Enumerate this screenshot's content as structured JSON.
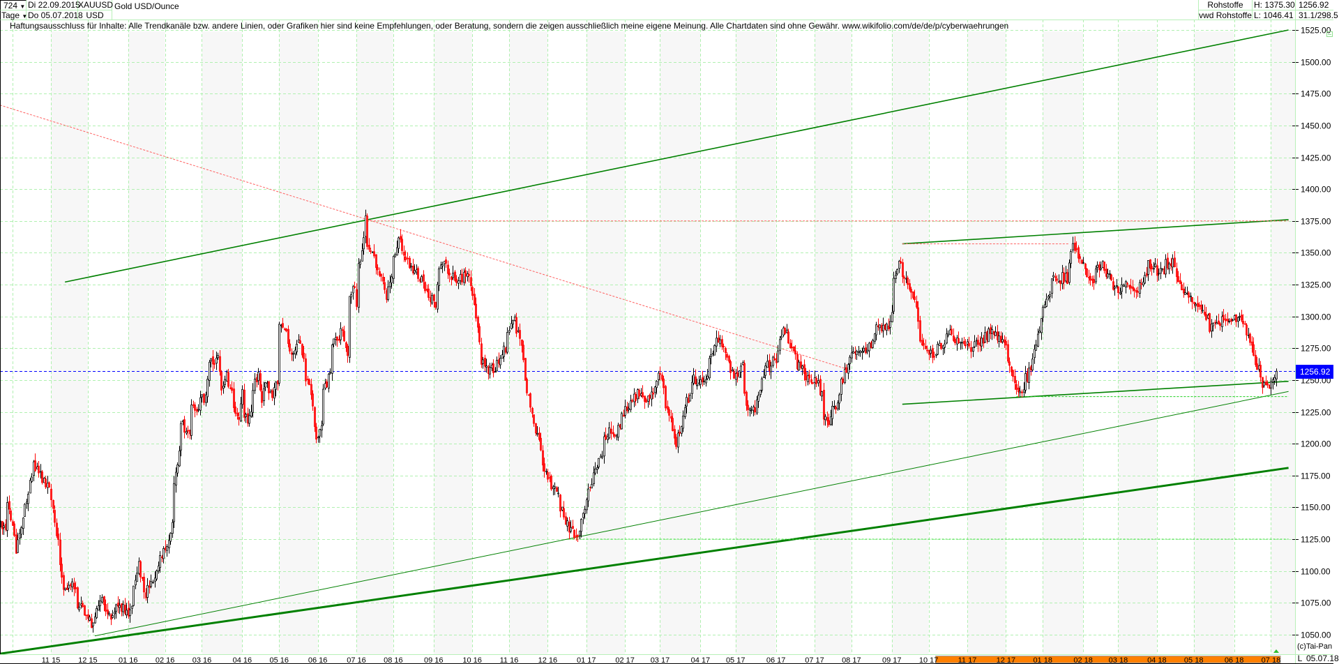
{
  "header": {
    "bars": "724",
    "interval": "Tage",
    "start_date": "Di 22.09.2015",
    "end_date": "Do 05.07.2018",
    "symbol": "XAUUSD",
    "currency": "USD",
    "name": "Gold USD/Ounce",
    "exchange": "Rohstoffe",
    "source": "vwd Rohstoffe",
    "high": "H: 1375.30",
    "low": "L: 1046.41",
    "last": "1256.92",
    "extra": "31.1/298.5"
  },
  "disclaimer": "Haftungsausschluss für Inhalte: Alle Trendkanäle bzw. andere Linien, oder Grafiken hier sind keine Empfehlungen, oder Beratung, sondern die zeigen ausschließlich meine eigene Meinung. Alle Chartdaten sind ohne Gewähr.  www.wikifolio.com/de/de/p/cyberwaehrungen",
  "footer": {
    "copyright": "(c)Tai-Pan",
    "scale_mode": "L",
    "date": "05.07.18"
  },
  "colors": {
    "up_candle": "#000000",
    "down_candle": "#ff0000",
    "trendline": "#008000",
    "grid": "#b0f0b0",
    "current_price": "#0000ff",
    "range_bar": "#ff8000"
  },
  "chart_data": {
    "type": "candlestick",
    "title": "Gold USD/Ounce",
    "ylim": [
      1037,
      1538
    ],
    "y_ticks": [
      "1050.00",
      "1075.00",
      "1100.00",
      "1125.00",
      "1150.00",
      "1175.00",
      "1200.00",
      "1225.00",
      "1250.00",
      "1275.00",
      "1300.00",
      "1325.00",
      "1350.00",
      "1375.00",
      "1400.00",
      "1425.00",
      "1450.00",
      "1475.00",
      "1500.00",
      "1525.00"
    ],
    "x_ticks": [
      "11 15",
      "12 15",
      "01 16",
      "02 16",
      "03 16",
      "04 16",
      "05 16",
      "06 16",
      "07 16",
      "08 16",
      "09 16",
      "10 16",
      "11 16",
      "12 16",
      "01 17",
      "02 17",
      "03 17",
      "04 17",
      "05 17",
      "06 17",
      "07 17",
      "08 17",
      "09 17",
      "10 17",
      "11 17",
      "12 17",
      "01 18",
      "02 18",
      "03 18",
      "04 18",
      "05 18",
      "06 18",
      "07 18"
    ],
    "grid": true,
    "current_price": 1256.92,
    "range_bar": [
      "2017-10-06",
      "2018-07-05"
    ],
    "closes": [
      [
        "2015-09-22",
        1135
      ],
      [
        "2015-09-25",
        1129
      ],
      [
        "2015-09-28",
        1154
      ],
      [
        "2015-10-04",
        1113
      ],
      [
        "2015-10-10",
        1145
      ],
      [
        "2015-10-14",
        1161
      ],
      [
        "2015-10-18",
        1185
      ],
      [
        "2015-10-24",
        1172
      ],
      [
        "2015-10-30",
        1165
      ],
      [
        "2015-11-03",
        1147
      ],
      [
        "2015-11-07",
        1116
      ],
      [
        "2015-11-11",
        1089
      ],
      [
        "2015-11-19",
        1087
      ],
      [
        "2015-11-24",
        1071
      ],
      [
        "2015-11-30",
        1066
      ],
      [
        "2015-12-06",
        1053
      ],
      [
        "2015-12-10",
        1080
      ],
      [
        "2015-12-18",
        1062
      ],
      [
        "2015-12-24",
        1076
      ],
      [
        "2015-12-30",
        1069
      ],
      [
        "2016-01-03",
        1062
      ],
      [
        "2016-01-07",
        1091
      ],
      [
        "2016-01-11",
        1105
      ],
      [
        "2016-01-15",
        1082
      ],
      [
        "2016-01-21",
        1089
      ],
      [
        "2016-01-25",
        1100
      ],
      [
        "2016-01-29",
        1120
      ],
      [
        "2016-02-02",
        1118
      ],
      [
        "2016-02-06",
        1143
      ],
      [
        "2016-02-08",
        1171
      ],
      [
        "2016-02-11",
        1192
      ],
      [
        "2016-02-13",
        1247
      ],
      [
        "2016-02-16",
        1210
      ],
      [
        "2016-02-20",
        1210
      ],
      [
        "2016-02-22",
        1228
      ],
      [
        "2016-02-26",
        1223
      ],
      [
        "2016-02-29",
        1232
      ],
      [
        "2016-03-03",
        1239
      ],
      [
        "2016-03-06",
        1264
      ],
      [
        "2016-03-09",
        1264
      ],
      [
        "2016-03-14",
        1270
      ],
      [
        "2016-03-16",
        1239
      ],
      [
        "2016-03-19",
        1259
      ],
      [
        "2016-03-23",
        1246
      ],
      [
        "2016-03-26",
        1223
      ],
      [
        "2016-03-30",
        1221
      ],
      [
        "2016-04-01",
        1241
      ],
      [
        "2016-04-05",
        1219
      ],
      [
        "2016-04-08",
        1223
      ],
      [
        "2016-04-11",
        1246
      ],
      [
        "2016-04-14",
        1254
      ],
      [
        "2016-04-17",
        1230
      ],
      [
        "2016-04-20",
        1248
      ],
      [
        "2016-04-24",
        1237
      ],
      [
        "2016-04-29",
        1246
      ],
      [
        "2016-05-01",
        1293
      ],
      [
        "2016-05-04",
        1290
      ],
      [
        "2016-05-09",
        1277
      ],
      [
        "2016-05-14",
        1268
      ],
      [
        "2016-05-17",
        1281
      ],
      [
        "2016-05-20",
        1264
      ],
      [
        "2016-05-25",
        1246
      ],
      [
        "2016-05-29",
        1214
      ],
      [
        "2016-05-31",
        1208
      ],
      [
        "2016-06-03",
        1212
      ],
      [
        "2016-06-06",
        1244
      ],
      [
        "2016-06-08",
        1244
      ],
      [
        "2016-06-11",
        1264
      ],
      [
        "2016-06-14",
        1281
      ],
      [
        "2016-06-19",
        1281
      ],
      [
        "2016-06-21",
        1293
      ],
      [
        "2016-06-23",
        1272
      ],
      [
        "2016-06-26",
        1259
      ],
      [
        "2016-06-27",
        1315
      ],
      [
        "2016-06-30",
        1324
      ],
      [
        "2016-07-01",
        1312
      ],
      [
        "2016-07-04",
        1339
      ],
      [
        "2016-07-06",
        1355
      ],
      [
        "2016-07-08",
        1375
      ],
      [
        "2016-07-10",
        1362
      ],
      [
        "2016-07-13",
        1353
      ],
      [
        "2016-07-16",
        1339
      ],
      [
        "2016-07-20",
        1330
      ],
      [
        "2016-07-26",
        1317
      ],
      [
        "2016-08-04",
        1360
      ],
      [
        "2016-08-12",
        1340
      ],
      [
        "2016-08-22",
        1330
      ],
      [
        "2016-09-02",
        1310
      ],
      [
        "2016-09-08",
        1345
      ],
      [
        "2016-09-19",
        1325
      ],
      [
        "2016-09-27",
        1335
      ],
      [
        "2016-10-04",
        1310
      ],
      [
        "2016-10-09",
        1265
      ],
      [
        "2016-10-16",
        1255
      ],
      [
        "2016-10-26",
        1270
      ],
      [
        "2016-11-05",
        1300
      ],
      [
        "2016-11-10",
        1275
      ],
      [
        "2016-11-17",
        1230
      ],
      [
        "2016-11-22",
        1210
      ],
      [
        "2016-11-29",
        1180
      ],
      [
        "2016-12-09",
        1160
      ],
      [
        "2016-12-18",
        1130
      ],
      [
        "2016-12-26",
        1130
      ],
      [
        "2017-01-02",
        1160
      ],
      [
        "2017-01-08",
        1180
      ],
      [
        "2017-01-19",
        1210
      ],
      [
        "2017-01-25",
        1210
      ],
      [
        "2017-02-01",
        1225
      ],
      [
        "2017-02-10",
        1240
      ],
      [
        "2017-02-18",
        1230
      ],
      [
        "2017-02-28",
        1255
      ],
      [
        "2017-03-07",
        1225
      ],
      [
        "2017-03-14",
        1200
      ],
      [
        "2017-03-21",
        1230
      ],
      [
        "2017-03-27",
        1250
      ],
      [
        "2017-04-06",
        1250
      ],
      [
        "2017-04-15",
        1285
      ],
      [
        "2017-04-23",
        1270
      ],
      [
        "2017-04-28",
        1250
      ],
      [
        "2017-05-05",
        1260
      ],
      [
        "2017-05-10",
        1225
      ],
      [
        "2017-05-17",
        1230
      ],
      [
        "2017-05-24",
        1260
      ],
      [
        "2017-06-01",
        1265
      ],
      [
        "2017-06-08",
        1290
      ],
      [
        "2017-06-15",
        1270
      ],
      [
        "2017-06-23",
        1255
      ],
      [
        "2017-07-04",
        1250
      ],
      [
        "2017-07-12",
        1215
      ],
      [
        "2017-07-21",
        1235
      ],
      [
        "2017-07-27",
        1260
      ],
      [
        "2017-08-06",
        1275
      ],
      [
        "2017-08-13",
        1270
      ],
      [
        "2017-08-20",
        1290
      ],
      [
        "2017-08-30",
        1290
      ],
      [
        "2017-09-06",
        1340
      ],
      [
        "2017-09-11",
        1335
      ],
      [
        "2017-09-20",
        1310
      ],
      [
        "2017-09-26",
        1280
      ],
      [
        "2017-10-06",
        1270
      ],
      [
        "2017-10-17",
        1290
      ],
      [
        "2017-10-23",
        1280
      ],
      [
        "2017-11-03",
        1275
      ],
      [
        "2017-11-13",
        1280
      ],
      [
        "2017-11-20",
        1290
      ],
      [
        "2017-11-30",
        1280
      ],
      [
        "2017-12-06",
        1255
      ],
      [
        "2017-12-13",
        1240
      ],
      [
        "2017-12-20",
        1255
      ],
      [
        "2017-12-30",
        1300
      ],
      [
        "2018-01-09",
        1330
      ],
      [
        "2018-01-20",
        1330
      ],
      [
        "2018-01-24",
        1355
      ],
      [
        "2018-01-31",
        1340
      ],
      [
        "2018-02-09",
        1325
      ],
      [
        "2018-02-16",
        1345
      ],
      [
        "2018-02-26",
        1320
      ],
      [
        "2018-03-08",
        1325
      ],
      [
        "2018-03-18",
        1320
      ],
      [
        "2018-03-25",
        1340
      ],
      [
        "2018-04-04",
        1335
      ],
      [
        "2018-04-13",
        1345
      ],
      [
        "2018-04-21",
        1320
      ],
      [
        "2018-05-01",
        1310
      ],
      [
        "2018-05-08",
        1305
      ],
      [
        "2018-05-15",
        1290
      ],
      [
        "2018-05-25",
        1300
      ],
      [
        "2018-06-04",
        1300
      ],
      [
        "2018-06-11",
        1290
      ],
      [
        "2018-06-18",
        1265
      ],
      [
        "2018-06-24",
        1250
      ],
      [
        "2018-06-29",
        1240
      ],
      [
        "2018-07-05",
        1256.92
      ]
    ],
    "trendlines": [
      {
        "style": "solid",
        "weight": "normal",
        "color": "#008000",
        "from": [
          "2015-11-12",
          1327
        ],
        "to": [
          "2018-07-14",
          1525
        ]
      },
      {
        "style": "solid",
        "weight": "thick",
        "color": "#008000",
        "from": [
          "2015-09-22",
          1035
        ],
        "to": [
          "2018-07-14",
          1181
        ]
      },
      {
        "style": "solid",
        "weight": "thin",
        "color": "#008000",
        "from": [
          "2015-12-05",
          1049
        ],
        "to": [
          "2018-07-14",
          1241
        ]
      },
      {
        "style": "solid",
        "weight": "normal",
        "color": "#008000",
        "from": [
          "2017-09-09",
          1357
        ],
        "to": [
          "2018-07-14",
          1376
        ]
      },
      {
        "style": "solid",
        "weight": "normal",
        "color": "#008000",
        "from": [
          "2017-09-09",
          1231
        ],
        "to": [
          "2018-07-14",
          1249
        ]
      },
      {
        "style": "dotted",
        "weight": "thin",
        "color": "#ff6060",
        "from": [
          "2015-09-22",
          1466
        ],
        "to": [
          "2017-07-30",
          1258
        ]
      },
      {
        "style": "dotted",
        "weight": "thin",
        "color": "#ff6060",
        "from": [
          "2016-07-09",
          1375
        ],
        "to": [
          "2018-07-14",
          1375
        ]
      },
      {
        "style": "dotted",
        "weight": "thin",
        "color": "#ff6060",
        "from": [
          "2017-09-09",
          1357
        ],
        "to": [
          "2018-01-21",
          1357
        ]
      },
      {
        "style": "dotted",
        "weight": "thin",
        "color": "#40e040",
        "from": [
          "2016-12-19",
          1125
        ],
        "to": [
          "2018-07-14",
          1125
        ]
      },
      {
        "style": "dotted",
        "weight": "thin",
        "color": "#20d020",
        "from": [
          "2017-12-10",
          1237
        ],
        "to": [
          "2018-07-14",
          1237
        ]
      }
    ]
  }
}
